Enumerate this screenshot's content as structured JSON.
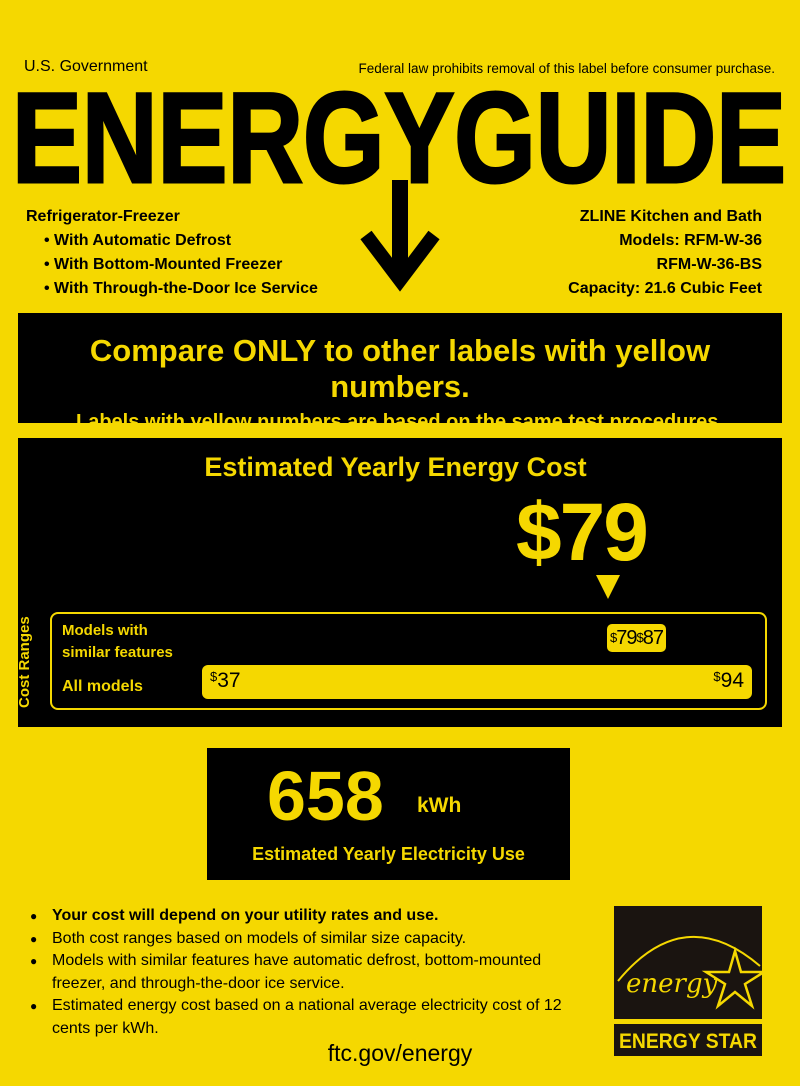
{
  "header": {
    "government": "U.S. Government",
    "notice": "Federal law prohibits removal of this label before consumer purchase.",
    "title": "ENERGYGUIDE"
  },
  "product": {
    "type": "Refrigerator-Freezer",
    "features": [
      "• With Automatic Defrost",
      "• With Bottom-Mounted Freezer",
      "• With Through-the-Door Ice Service"
    ],
    "manufacturer": "ZLINE Kitchen and Bath",
    "models_line": "Models: RFM-W-36",
    "models_line2": "RFM-W-36-BS",
    "capacity": "Capacity: 21.6 Cubic Feet"
  },
  "compare": {
    "line1": "Compare ONLY to other labels with yellow numbers.",
    "line2": "Labels with yellow numbers are based on the same test procedures."
  },
  "cost": {
    "title": "Estimated Yearly Energy Cost",
    "value": "$79",
    "ranges_label": "Cost Ranges",
    "similar_label_1": "Models with",
    "similar_label_2": "similar features",
    "similar_low": "79",
    "similar_high": "87",
    "all_label": "All models",
    "all_low": "37",
    "all_high": "94",
    "currency": "$"
  },
  "electricity": {
    "value": "658",
    "unit": "kWh",
    "label": "Estimated Yearly Electricity Use"
  },
  "notes": [
    "Your cost will depend on your utility rates and use.",
    "Both cost ranges based on models of similar size capacity.",
    "Models with similar features have automatic defrost, bottom-mounted freezer, and through-the-door ice service.",
    "Estimated energy cost based on a national average electricity cost of 12 cents per kWh."
  ],
  "footer": {
    "url": "ftc.gov/energy"
  },
  "logo": {
    "script": "energy",
    "name": "ENERGY STAR"
  },
  "colors": {
    "label_yellow": "#f5d800",
    "box_black": "#000000"
  }
}
